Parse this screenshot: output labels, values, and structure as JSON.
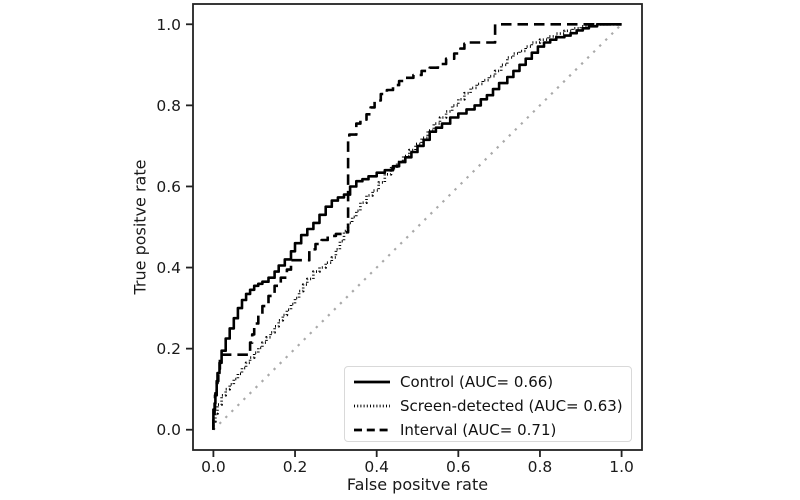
{
  "figure": {
    "background": "#ffffff"
  },
  "chart_data": {
    "type": "line",
    "subtype": "roc-curves",
    "title": "",
    "xlabel": "False positve rate",
    "ylabel": "True positve rate",
    "xlim": [
      -0.05,
      1.05
    ],
    "ylim": [
      -0.05,
      1.05
    ],
    "x_tick_labels": [
      "0.0",
      "0.2",
      "0.4",
      "0.6",
      "0.8",
      "1.0"
    ],
    "y_tick_labels": [
      "0.0",
      "0.2",
      "0.4",
      "0.6",
      "0.8",
      "1.0"
    ],
    "x_tick_values": [
      0,
      0.2,
      0.4,
      0.6,
      0.8,
      1.0
    ],
    "y_tick_values": [
      0,
      0.2,
      0.4,
      0.6,
      0.8,
      1.0
    ],
    "grid": false,
    "legend_position": "lower right",
    "axis_color": "#222222",
    "tick_label_color": "#1a1a1a",
    "series": [
      {
        "name": "control",
        "label": "Control (AUC= 0.66)",
        "auc": 0.66,
        "style": "solid",
        "color": "#000000",
        "step": true,
        "points": [
          [
            0,
            0
          ],
          [
            0.003,
            0.04
          ],
          [
            0.005,
            0.065
          ],
          [
            0.008,
            0.09
          ],
          [
            0.01,
            0.115
          ],
          [
            0.015,
            0.14
          ],
          [
            0.02,
            0.165
          ],
          [
            0.03,
            0.195
          ],
          [
            0.04,
            0.225
          ],
          [
            0.05,
            0.25
          ],
          [
            0.06,
            0.275
          ],
          [
            0.07,
            0.3
          ],
          [
            0.08,
            0.32
          ],
          [
            0.09,
            0.335
          ],
          [
            0.1,
            0.345
          ],
          [
            0.11,
            0.355
          ],
          [
            0.12,
            0.36
          ],
          [
            0.135,
            0.365
          ],
          [
            0.15,
            0.375
          ],
          [
            0.16,
            0.39
          ],
          [
            0.175,
            0.405
          ],
          [
            0.19,
            0.42
          ],
          [
            0.2,
            0.44
          ],
          [
            0.215,
            0.46
          ],
          [
            0.23,
            0.48
          ],
          [
            0.245,
            0.495
          ],
          [
            0.26,
            0.51
          ],
          [
            0.275,
            0.53
          ],
          [
            0.29,
            0.55
          ],
          [
            0.305,
            0.565
          ],
          [
            0.32,
            0.573
          ],
          [
            0.335,
            0.58
          ],
          [
            0.35,
            0.6
          ],
          [
            0.365,
            0.613
          ],
          [
            0.38,
            0.618
          ],
          [
            0.4,
            0.625
          ],
          [
            0.42,
            0.634
          ],
          [
            0.44,
            0.64
          ],
          [
            0.455,
            0.65
          ],
          [
            0.47,
            0.66
          ],
          [
            0.485,
            0.672
          ],
          [
            0.5,
            0.685
          ],
          [
            0.515,
            0.7
          ],
          [
            0.53,
            0.715
          ],
          [
            0.545,
            0.735
          ],
          [
            0.56,
            0.745
          ],
          [
            0.58,
            0.755
          ],
          [
            0.6,
            0.77
          ],
          [
            0.62,
            0.78
          ],
          [
            0.64,
            0.79
          ],
          [
            0.655,
            0.8
          ],
          [
            0.67,
            0.815
          ],
          [
            0.685,
            0.825
          ],
          [
            0.7,
            0.84
          ],
          [
            0.72,
            0.855
          ],
          [
            0.735,
            0.87
          ],
          [
            0.75,
            0.885
          ],
          [
            0.765,
            0.9
          ],
          [
            0.78,
            0.915
          ],
          [
            0.795,
            0.93
          ],
          [
            0.81,
            0.945
          ],
          [
            0.825,
            0.955
          ],
          [
            0.84,
            0.962
          ],
          [
            0.86,
            0.968
          ],
          [
            0.875,
            0.972
          ],
          [
            0.89,
            0.978
          ],
          [
            0.905,
            0.985
          ],
          [
            0.92,
            0.99
          ],
          [
            0.94,
            0.995
          ],
          [
            0.955,
            1
          ],
          [
            1,
            1
          ]
        ]
      },
      {
        "name": "screen-detected",
        "label": "Screen-detected (AUC= 0.63)",
        "auc": 0.63,
        "style": "dotted",
        "color": "#000000",
        "step": true,
        "points": [
          [
            0,
            0
          ],
          [
            0.005,
            0.02
          ],
          [
            0.01,
            0.04
          ],
          [
            0.02,
            0.062
          ],
          [
            0.03,
            0.085
          ],
          [
            0.04,
            0.1
          ],
          [
            0.05,
            0.112
          ],
          [
            0.06,
            0.125
          ],
          [
            0.07,
            0.138
          ],
          [
            0.08,
            0.152
          ],
          [
            0.09,
            0.165
          ],
          [
            0.1,
            0.178
          ],
          [
            0.11,
            0.19
          ],
          [
            0.12,
            0.202
          ],
          [
            0.13,
            0.215
          ],
          [
            0.14,
            0.228
          ],
          [
            0.15,
            0.24
          ],
          [
            0.16,
            0.255
          ],
          [
            0.17,
            0.27
          ],
          [
            0.18,
            0.283
          ],
          [
            0.19,
            0.296
          ],
          [
            0.2,
            0.31
          ],
          [
            0.21,
            0.325
          ],
          [
            0.22,
            0.342
          ],
          [
            0.23,
            0.358
          ],
          [
            0.245,
            0.372
          ],
          [
            0.26,
            0.39
          ],
          [
            0.275,
            0.4
          ],
          [
            0.29,
            0.412
          ],
          [
            0.3,
            0.425
          ],
          [
            0.31,
            0.445
          ],
          [
            0.32,
            0.465
          ],
          [
            0.33,
            0.49
          ],
          [
            0.34,
            0.51
          ],
          [
            0.35,
            0.525
          ],
          [
            0.36,
            0.54
          ],
          [
            0.375,
            0.56
          ],
          [
            0.39,
            0.578
          ],
          [
            0.405,
            0.59
          ],
          [
            0.42,
            0.61
          ],
          [
            0.435,
            0.63
          ],
          [
            0.45,
            0.645
          ],
          [
            0.465,
            0.66
          ],
          [
            0.48,
            0.675
          ],
          [
            0.495,
            0.69
          ],
          [
            0.51,
            0.705
          ],
          [
            0.525,
            0.72
          ],
          [
            0.54,
            0.738
          ],
          [
            0.555,
            0.755
          ],
          [
            0.57,
            0.77
          ],
          [
            0.585,
            0.785
          ],
          [
            0.6,
            0.8
          ],
          [
            0.615,
            0.815
          ],
          [
            0.63,
            0.83
          ],
          [
            0.645,
            0.843
          ],
          [
            0.66,
            0.853
          ],
          [
            0.675,
            0.862
          ],
          [
            0.69,
            0.872
          ],
          [
            0.705,
            0.885
          ],
          [
            0.72,
            0.9
          ],
          [
            0.735,
            0.918
          ],
          [
            0.75,
            0.928
          ],
          [
            0.765,
            0.934
          ],
          [
            0.78,
            0.945
          ],
          [
            0.8,
            0.955
          ],
          [
            0.82,
            0.962
          ],
          [
            0.84,
            0.97
          ],
          [
            0.86,
            0.977
          ],
          [
            0.88,
            0.984
          ],
          [
            0.9,
            0.99
          ],
          [
            0.925,
            0.995
          ],
          [
            0.945,
            1
          ],
          [
            1,
            1
          ]
        ]
      },
      {
        "name": "interval",
        "label": "Interval (AUC= 0.71)",
        "auc": 0.71,
        "style": "dashed",
        "color": "#000000",
        "step": true,
        "points": [
          [
            0,
            0
          ],
          [
            0.004,
            0.05
          ],
          [
            0.008,
            0.085
          ],
          [
            0.012,
            0.12
          ],
          [
            0.016,
            0.15
          ],
          [
            0.02,
            0.185
          ],
          [
            0.09,
            0.185
          ],
          [
            0.095,
            0.215
          ],
          [
            0.1,
            0.235
          ],
          [
            0.11,
            0.262
          ],
          [
            0.12,
            0.285
          ],
          [
            0.135,
            0.305
          ],
          [
            0.15,
            0.33
          ],
          [
            0.165,
            0.355
          ],
          [
            0.18,
            0.375
          ],
          [
            0.19,
            0.395
          ],
          [
            0.2,
            0.418
          ],
          [
            0.235,
            0.418
          ],
          [
            0.25,
            0.445
          ],
          [
            0.265,
            0.458
          ],
          [
            0.28,
            0.468
          ],
          [
            0.3,
            0.478
          ],
          [
            0.315,
            0.483
          ],
          [
            0.33,
            0.487
          ],
          [
            0.333,
            0.72
          ],
          [
            0.35,
            0.728
          ],
          [
            0.36,
            0.755
          ],
          [
            0.375,
            0.765
          ],
          [
            0.385,
            0.778
          ],
          [
            0.395,
            0.795
          ],
          [
            0.41,
            0.812
          ],
          [
            0.425,
            0.828
          ],
          [
            0.44,
            0.838
          ],
          [
            0.455,
            0.85
          ],
          [
            0.47,
            0.86
          ],
          [
            0.49,
            0.868
          ],
          [
            0.51,
            0.875
          ],
          [
            0.53,
            0.885
          ],
          [
            0.55,
            0.893
          ],
          [
            0.57,
            0.902
          ],
          [
            0.59,
            0.915
          ],
          [
            0.605,
            0.928
          ],
          [
            0.615,
            0.94
          ],
          [
            0.625,
            0.952
          ],
          [
            0.66,
            0.955
          ],
          [
            0.69,
            0.955
          ],
          [
            0.693,
            1
          ],
          [
            1,
            1
          ]
        ]
      }
    ],
    "reference_line": {
      "name": "chance-diagonal",
      "style": "dotted",
      "color": "#a9a9a9",
      "step": false,
      "points": [
        [
          0,
          0
        ],
        [
          1,
          1
        ]
      ]
    }
  }
}
